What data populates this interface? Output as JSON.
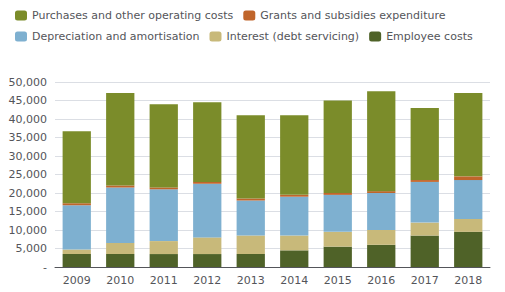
{
  "chart_data": {
    "type": "bar",
    "stacked": true,
    "categories": [
      "2009",
      "2010",
      "2011",
      "2012",
      "2013",
      "2014",
      "2015",
      "2016",
      "2017",
      "2018"
    ],
    "series": [
      {
        "name": "Employee costs",
        "color": "#4f6228",
        "values": [
          3500,
          3500,
          3500,
          3500,
          3500,
          4500,
          5500,
          6000,
          8500,
          9500
        ]
      },
      {
        "name": "Interest (debt servicing)",
        "color": "#c8b97a",
        "values": [
          1200,
          3000,
          3500,
          4500,
          5000,
          4000,
          4000,
          4000,
          3500,
          3500
        ]
      },
      {
        "name": "Depreciation and amortisation",
        "color": "#7eb0d0",
        "values": [
          12000,
          15000,
          14000,
          14500,
          9500,
          10500,
          10000,
          10000,
          11000,
          10500
        ]
      },
      {
        "name": "Grants and subsidies expenditure",
        "color": "#c0652b",
        "values": [
          500,
          500,
          500,
          500,
          500,
          500,
          500,
          500,
          500,
          1000
        ]
      },
      {
        "name": "Purchases and other operating costs",
        "color": "#7b8c2a",
        "values": [
          19500,
          25000,
          22500,
          21500,
          22500,
          21500,
          25000,
          27000,
          19500,
          22500
        ]
      }
    ],
    "ylim": [
      0,
      50000
    ],
    "yticks": [
      {
        "value": 0,
        "label": "-"
      },
      {
        "value": 5000,
        "label": "5,000"
      },
      {
        "value": 10000,
        "label": "10,000"
      },
      {
        "value": 15000,
        "label": "15,000"
      },
      {
        "value": 20000,
        "label": "20,000"
      },
      {
        "value": 25000,
        "label": "25,000"
      },
      {
        "value": 30000,
        "label": "30,000"
      },
      {
        "value": 35000,
        "label": "35,000"
      },
      {
        "value": 40000,
        "label": "40,000"
      },
      {
        "value": 45000,
        "label": "45,000"
      },
      {
        "value": 50000,
        "label": "50,000"
      }
    ],
    "grid": true,
    "legend": "top left"
  }
}
